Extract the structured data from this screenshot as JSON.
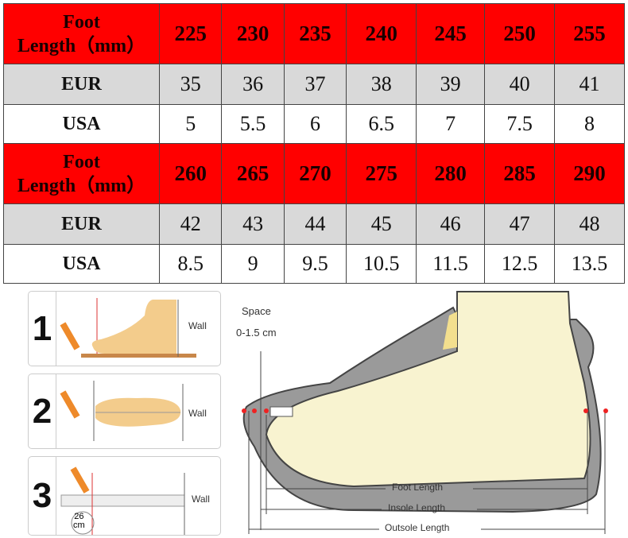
{
  "size_table": {
    "blocks": [
      {
        "header_label_line1": "Foot",
        "header_label_line2": "Length（mm）",
        "foot_lengths": [
          "225",
          "230",
          "235",
          "240",
          "245",
          "250",
          "255"
        ],
        "eur_label": "EUR",
        "eur": [
          "35",
          "36",
          "37",
          "38",
          "39",
          "40",
          "41"
        ],
        "usa_label": "USA",
        "usa": [
          "5",
          "5.5",
          "6",
          "6.5",
          "7",
          "7.5",
          "8"
        ]
      },
      {
        "header_label_line1": "Foot",
        "header_label_line2": "Length（mm）",
        "foot_lengths": [
          "260",
          "265",
          "270",
          "275",
          "280",
          "285",
          "290"
        ],
        "eur_label": "EUR",
        "eur": [
          "42",
          "43",
          "44",
          "45",
          "46",
          "47",
          "48"
        ],
        "usa_label": "USA",
        "usa": [
          "8.5",
          "9",
          "9.5",
          "10.5",
          "11.5",
          "12.5",
          "13.5"
        ]
      }
    ],
    "colors": {
      "header": "#ff0000",
      "eur_row": "#d9d9d9",
      "usa_row": "#ffffff"
    }
  },
  "steps": [
    {
      "number": "1",
      "wall": "Wall"
    },
    {
      "number": "2",
      "wall": "Wall"
    },
    {
      "number": "3",
      "wall": "Wall",
      "ruler_reading_value": "26",
      "ruler_reading_unit": "cm"
    }
  ],
  "diagram": {
    "space_label": "Space",
    "space_value": "0-1.5 cm",
    "foot_length": "Foot Length",
    "insole_length": "Insole Length",
    "outsole_length": "Outsole Length"
  }
}
